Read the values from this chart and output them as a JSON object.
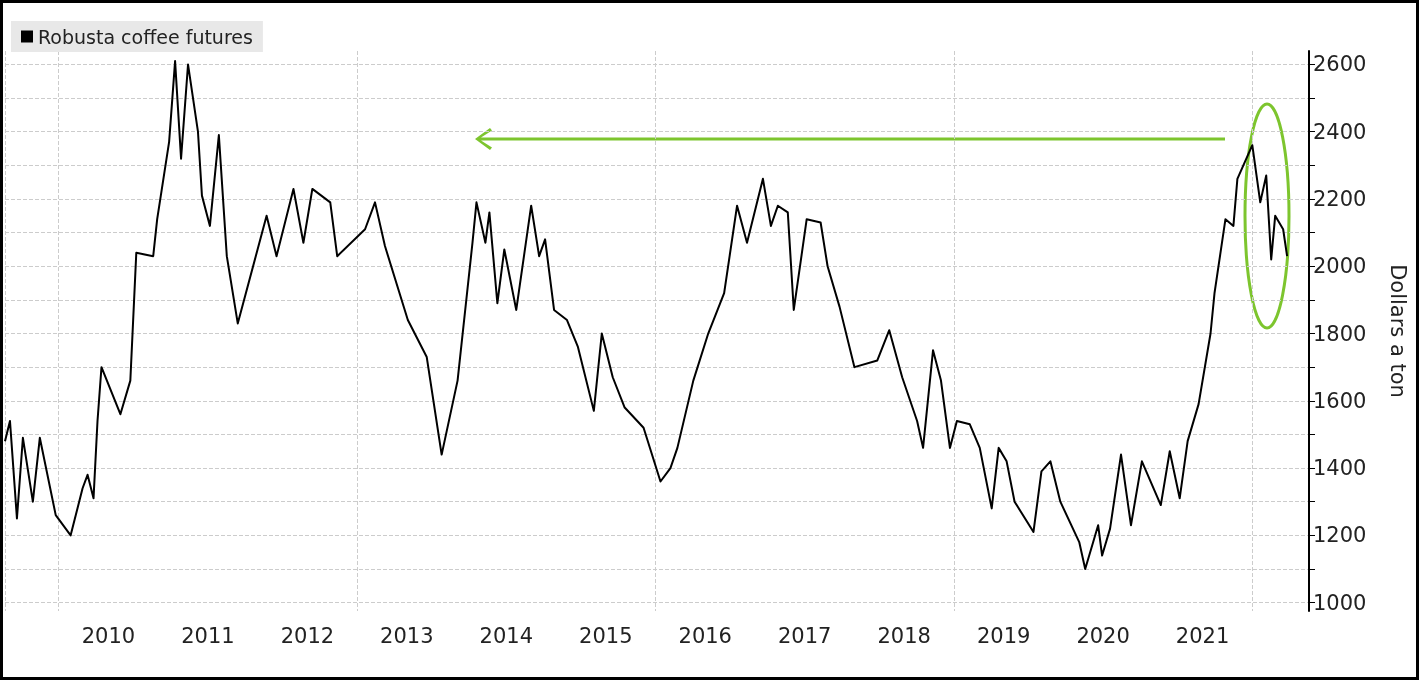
{
  "chart_data": {
    "type": "line",
    "ylabel": "Dollars a ton",
    "series": [
      {
        "name": "Robusta coffee futures",
        "color": "#000000",
        "x": [
          2009.46,
          2009.51,
          2009.58,
          2009.64,
          2009.74,
          2009.81,
          2009.97,
          2010.12,
          2010.24,
          2010.29,
          2010.35,
          2010.39,
          2010.43,
          2010.62,
          2010.72,
          2010.78,
          2010.95,
          2010.99,
          2011.11,
          2011.17,
          2011.23,
          2011.3,
          2011.4,
          2011.44,
          2011.52,
          2011.61,
          2011.69,
          2011.8,
          2012.09,
          2012.19,
          2012.36,
          2012.46,
          2012.55,
          2012.73,
          2012.8,
          2013.08,
          2013.18,
          2013.28,
          2013.51,
          2013.7,
          2013.85,
          2014.01,
          2014.16,
          2014.2,
          2014.29,
          2014.33,
          2014.41,
          2014.48,
          2014.6,
          2014.75,
          2014.83,
          2014.89,
          2014.98,
          2015.11,
          2015.22,
          2015.38,
          2015.46,
          2015.57,
          2015.69,
          2015.88,
          2016.05,
          2016.15,
          2016.22,
          2016.38,
          2016.53,
          2016.69,
          2016.82,
          2016.92,
          2017.08,
          2017.16,
          2017.23,
          2017.33,
          2017.39,
          2017.52,
          2017.66,
          2017.73,
          2017.85,
          2018.0,
          2018.23,
          2018.35,
          2018.48,
          2018.63,
          2018.69,
          2018.79,
          2018.87,
          2018.96,
          2019.03,
          2019.16,
          2019.26,
          2019.38,
          2019.45,
          2019.53,
          2019.61,
          2019.8,
          2019.88,
          2019.97,
          2020.07,
          2020.26,
          2020.32,
          2020.39,
          2020.45,
          2020.49,
          2020.57,
          2020.68,
          2020.78,
          2020.89,
          2021.08,
          2021.17,
          2021.27,
          2021.35,
          2021.46,
          2021.58,
          2021.62,
          2021.73,
          2021.81,
          2021.85,
          2022.0,
          2022.08,
          2022.14,
          2022.19,
          2022.23,
          2022.31,
          2022.35
        ],
        "values": [
          1480,
          1540,
          1250,
          1490,
          1300,
          1490,
          1260,
          1200,
          1340,
          1380,
          1310,
          1540,
          1700,
          1560,
          1660,
          2040,
          2030,
          2140,
          2370,
          2610,
          2320,
          2600,
          2400,
          2210,
          2120,
          2390,
          2030,
          1830,
          2150,
          2030,
          2230,
          2070,
          2230,
          2190,
          2030,
          2110,
          2190,
          2060,
          1840,
          1730,
          1440,
          1660,
          2070,
          2190,
          2070,
          2160,
          1890,
          2050,
          1870,
          2180,
          2030,
          2080,
          1870,
          1840,
          1760,
          1570,
          1800,
          1670,
          1580,
          1520,
          1360,
          1400,
          1460,
          1660,
          1800,
          1920,
          2180,
          2070,
          2260,
          2120,
          2180,
          2160,
          1870,
          2140,
          2130,
          2000,
          1880,
          1700,
          1720,
          1810,
          1670,
          1540,
          1460,
          1750,
          1660,
          1460,
          1540,
          1530,
          1460,
          1280,
          1460,
          1420,
          1300,
          1210,
          1390,
          1420,
          1300,
          1180,
          1100,
          1170,
          1230,
          1140,
          1220,
          1440,
          1230,
          1420,
          1290,
          1450,
          1310,
          1480,
          1590,
          1800,
          1920,
          2140,
          2120,
          2260,
          2360,
          2190,
          2270,
          2020,
          2150,
          2110,
          2030
        ]
      }
    ],
    "xlim": [
      2009.46,
      2022.57
    ],
    "xticks": [
      {
        "value": 2010.5,
        "label": "2010"
      },
      {
        "value": 2011.5,
        "label": "2011"
      },
      {
        "value": 2012.5,
        "label": "2012"
      },
      {
        "value": 2013.5,
        "label": "2013"
      },
      {
        "value": 2014.5,
        "label": "2014"
      },
      {
        "value": 2015.5,
        "label": "2015"
      },
      {
        "value": 2016.5,
        "label": "2016"
      },
      {
        "value": 2017.5,
        "label": "2017"
      },
      {
        "value": 2018.5,
        "label": "2018"
      },
      {
        "value": 2019.5,
        "label": "2019"
      },
      {
        "value": 2020.5,
        "label": "2020"
      },
      {
        "value": 2021.5,
        "label": "2021"
      }
    ],
    "ylim": [
      975,
      2640
    ],
    "yticks": [
      1000,
      {
        "value": 1100,
        "label": null
      },
      1200,
      {
        "value": 1300,
        "label": null
      },
      1400,
      {
        "value": 1500,
        "label": null
      },
      1600,
      {
        "value": 1700,
        "label": null
      },
      1800,
      {
        "value": 1900,
        "label": null
      },
      2000,
      {
        "value": 2100,
        "label": null
      },
      2200,
      {
        "value": 2300,
        "label": null
      },
      2400,
      {
        "value": 2500,
        "label": null
      },
      2600
    ],
    "grid": true,
    "legend": "top left",
    "marker": "none",
    "line_style": "solid"
  }
}
